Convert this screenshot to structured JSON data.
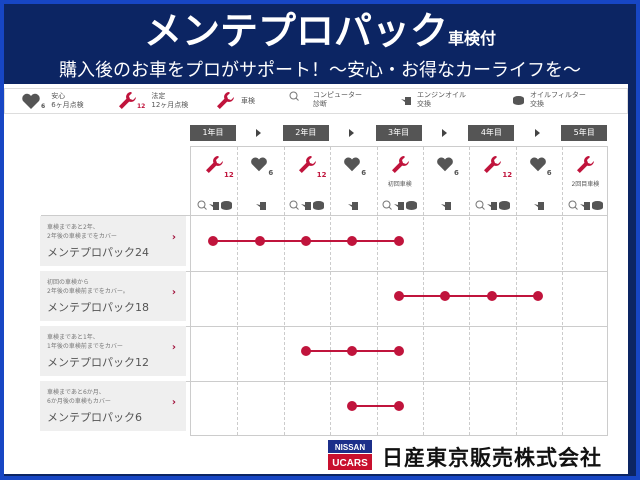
{
  "header": {
    "title": "メンテプロパック",
    "title_suffix": "車検付",
    "subtitle": "購入後のお車をプロがサポート！～安心・お得なカーライフを～"
  },
  "legend": [
    {
      "icon": "heart-icon",
      "label1": "安心",
      "label2": "6ヶ月点検",
      "badge": "6"
    },
    {
      "icon": "wrench-icon",
      "label1": "法定",
      "label2": "12ヶ月点検",
      "badge": "12"
    },
    {
      "icon": "wrench-icon",
      "label1": "車検",
      "label2": ""
    },
    {
      "icon": "magnifier-diagnosis-icon",
      "label1": "コンピューター",
      "label2": "診断"
    },
    {
      "icon": "oil-can-icon",
      "label1": "エンジンオイル",
      "label2": "交換"
    },
    {
      "icon": "oil-filter-icon",
      "label1": "オイルフィルター",
      "label2": "交換"
    }
  ],
  "years": [
    "1年目",
    "2年目",
    "3年目",
    "4年目",
    "5年目"
  ],
  "columns": [
    {
      "type": "wrench",
      "badge": "12",
      "caption": "",
      "extras": [
        "diag",
        "oil",
        "filter"
      ]
    },
    {
      "type": "heart",
      "badge": "6",
      "caption": "",
      "extras": [
        "oil"
      ]
    },
    {
      "type": "wrench",
      "badge": "12",
      "caption": "",
      "extras": [
        "diag",
        "oil",
        "filter"
      ]
    },
    {
      "type": "heart",
      "badge": "6",
      "caption": "",
      "extras": [
        "oil"
      ]
    },
    {
      "type": "wrench",
      "badge": "",
      "caption": "初回車検",
      "extras": [
        "diag",
        "oil",
        "filter"
      ]
    },
    {
      "type": "heart",
      "badge": "6",
      "caption": "",
      "extras": [
        "oil"
      ]
    },
    {
      "type": "wrench",
      "badge": "12",
      "caption": "",
      "extras": [
        "diag",
        "oil",
        "filter"
      ]
    },
    {
      "type": "heart",
      "badge": "6",
      "caption": "",
      "extras": [
        "oil"
      ]
    },
    {
      "type": "wrench",
      "badge": "",
      "caption": "2回目車検",
      "extras": [
        "diag",
        "oil",
        "filter"
      ]
    }
  ],
  "packs": [
    {
      "desc1": "車検まであと2年、",
      "desc2": "2年後の車検までをカバー",
      "name": "メンテプロパック24",
      "from": 0,
      "to": 4
    },
    {
      "desc1": "初回の車検から",
      "desc2": "2年後の車検前までをカバー。",
      "name": "メンテプロパック18",
      "from": 4,
      "to": 7
    },
    {
      "desc1": "車検まであと1年、",
      "desc2": "1年後の車検前までをカバー",
      "name": "メンテプロパック12",
      "from": 2,
      "to": 4
    },
    {
      "desc1": "車検まであと6か月、",
      "desc2": "6か月後の車検もカバー",
      "name": "メンテプロパック6",
      "from": 3,
      "to": 4
    }
  ],
  "footer": {
    "logo_top": "NISSAN",
    "logo_bottom": "UCARS",
    "company": "日産東京販売株式会社"
  },
  "colors": {
    "accent": "#c0143c",
    "header_bg": "#0c2563",
    "border": "#1746c4",
    "icon_gray": "#555555"
  }
}
